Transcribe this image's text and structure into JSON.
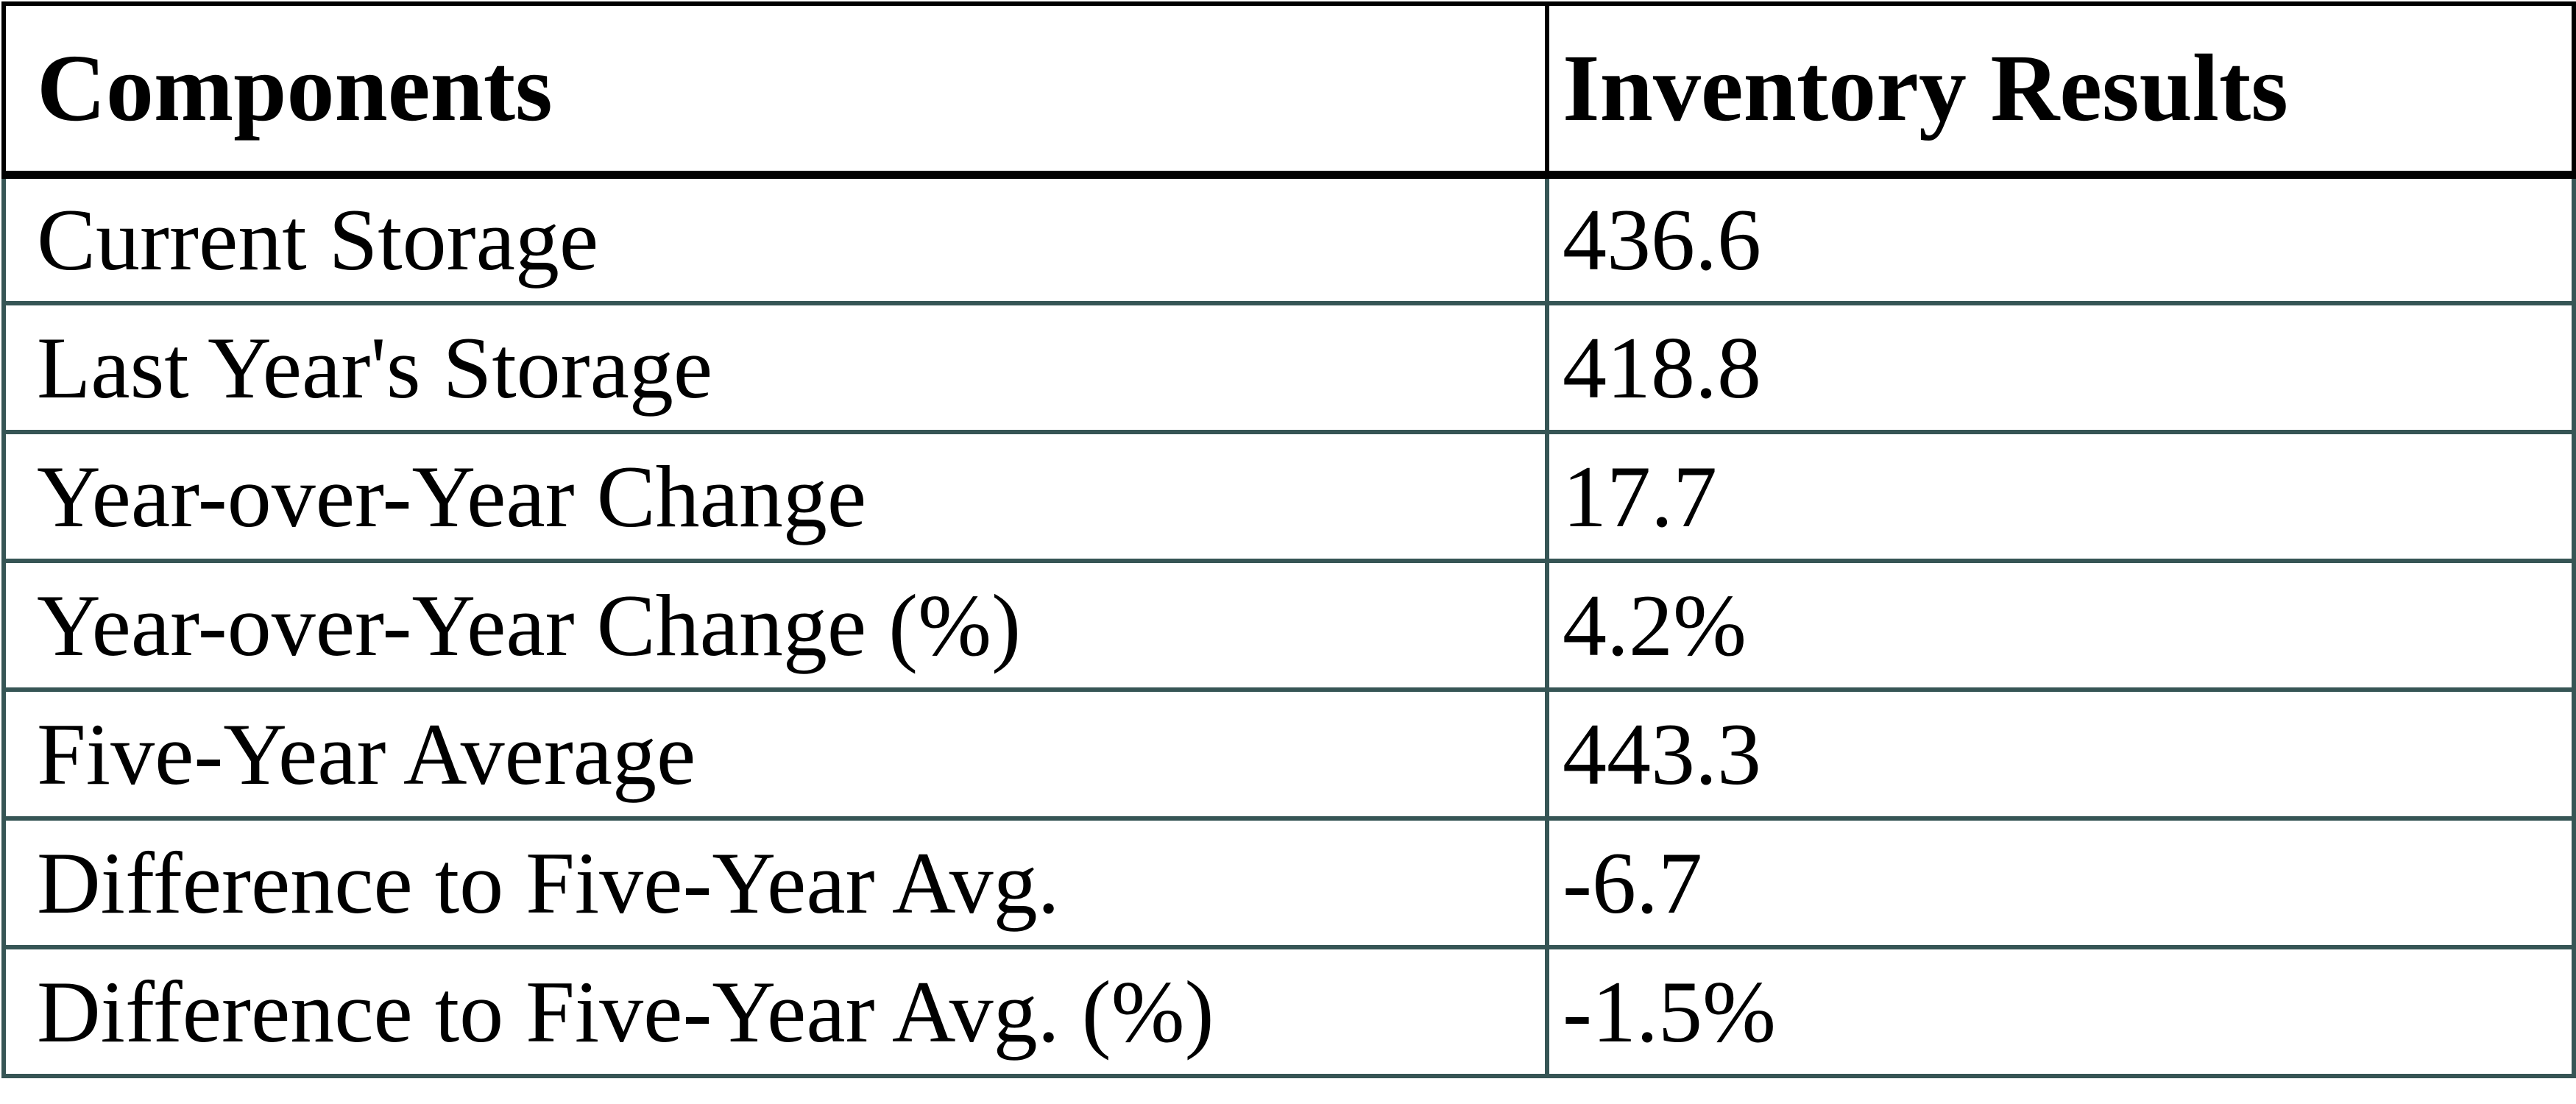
{
  "table": {
    "columns": [
      {
        "label": "Components"
      },
      {
        "label": "Inventory Results"
      }
    ],
    "rows": [
      {
        "label": "Current Storage",
        "value": "436.6"
      },
      {
        "label": "Last Year's Storage",
        "value": "418.8"
      },
      {
        "label": "Year-over-Year Change",
        "value": "17.7"
      },
      {
        "label": "Year-over-Year Change (%)",
        "value": "4.2%"
      },
      {
        "label": "Five-Year Average",
        "value": "443.3"
      },
      {
        "label": "Difference to Five-Year Avg.",
        "value": "-6.7"
      },
      {
        "label": "Difference to Five-Year Avg. (%)",
        "value": "-1.5%"
      }
    ]
  },
  "colors": {
    "header_border": "#000000",
    "body_border": "#365555",
    "text": "#000000",
    "background": "#ffffff"
  },
  "chart_data": {
    "type": "table",
    "columns": [
      "Components",
      "Inventory Results"
    ],
    "categories": [
      "Current Storage",
      "Last Year's Storage",
      "Year-over-Year Change",
      "Year-over-Year Change (%)",
      "Five-Year Average",
      "Difference to Five-Year Avg.",
      "Difference to Five-Year Avg. (%)"
    ],
    "values": [
      436.6,
      418.8,
      17.7,
      4.2,
      443.3,
      -6.7,
      -1.5
    ],
    "display_values": [
      "436.6",
      "418.8",
      "17.7",
      "4.2%",
      "443.3",
      "-6.7",
      "-1.5%"
    ],
    "units": [
      "",
      "",
      "",
      "%",
      "",
      "",
      "%"
    ]
  }
}
